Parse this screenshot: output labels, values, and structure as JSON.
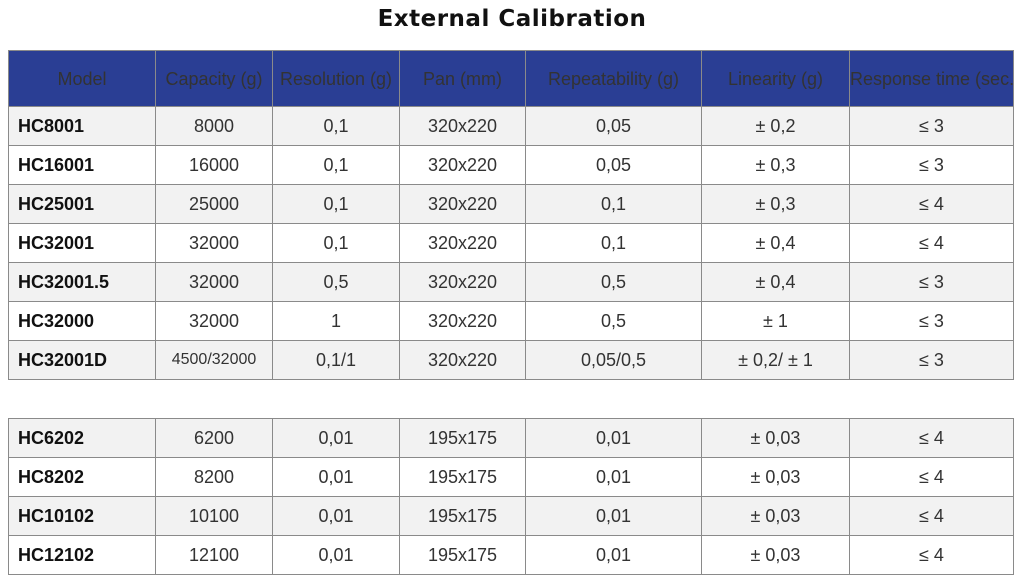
{
  "title": "External Calibration",
  "headers": [
    "Model",
    "Capacity (g)",
    "Resolution (g)",
    "Pan (mm)",
    "Repeatability (g)",
    "Linearity (g)",
    "Response time (sec.)"
  ],
  "group1": [
    {
      "model": "HC8001",
      "capacity": "8000",
      "resolution": "0,1",
      "pan": "320x220",
      "repeatability": "0,05",
      "linearity": "± 0,2",
      "response": "≤ 3"
    },
    {
      "model": "HC16001",
      "capacity": "16000",
      "resolution": "0,1",
      "pan": "320x220",
      "repeatability": "0,05",
      "linearity": "± 0,3",
      "response": "≤ 3"
    },
    {
      "model": "HC25001",
      "capacity": "25000",
      "resolution": "0,1",
      "pan": "320x220",
      "repeatability": "0,1",
      "linearity": "± 0,3",
      "response": "≤ 4"
    },
    {
      "model": "HC32001",
      "capacity": "32000",
      "resolution": "0,1",
      "pan": "320x220",
      "repeatability": "0,1",
      "linearity": "± 0,4",
      "response": "≤ 4"
    },
    {
      "model": "HC32001.5",
      "capacity": "32000",
      "resolution": "0,5",
      "pan": "320x220",
      "repeatability": "0,5",
      "linearity": "± 0,4",
      "response": "≤ 3"
    },
    {
      "model": "HC32000",
      "capacity": "32000",
      "resolution": "1",
      "pan": "320x220",
      "repeatability": "0,5",
      "linearity": "± 1",
      "response": "≤ 3"
    },
    {
      "model": "HC32001D",
      "capacity": "4500/32000",
      "resolution": "0,1/1",
      "pan": "320x220",
      "repeatability": "0,05/0,5",
      "linearity": "± 0,2/ ± 1",
      "response": "≤ 3"
    }
  ],
  "group2": [
    {
      "model": "HC6202",
      "capacity": "6200",
      "resolution": "0,01",
      "pan": "195x175",
      "repeatability": "0,01",
      "linearity": "± 0,03",
      "response": "≤ 4"
    },
    {
      "model": "HC8202",
      "capacity": "8200",
      "resolution": "0,01",
      "pan": "195x175",
      "repeatability": "0,01",
      "linearity": "± 0,03",
      "response": "≤ 4"
    },
    {
      "model": "HC10102",
      "capacity": "10100",
      "resolution": "0,01",
      "pan": "195x175",
      "repeatability": "0,01",
      "linearity": "± 0,03",
      "response": "≤ 4"
    },
    {
      "model": "HC12102",
      "capacity": "12100",
      "resolution": "0,01",
      "pan": "195x175",
      "repeatability": "0,01",
      "linearity": "± 0,03",
      "response": "≤ 4"
    }
  ],
  "colors": {
    "header_bg": "#2a3e94",
    "header_text": "#ffffff",
    "row_alt": "#f2f2f2",
    "border": "#8a8a8a"
  }
}
